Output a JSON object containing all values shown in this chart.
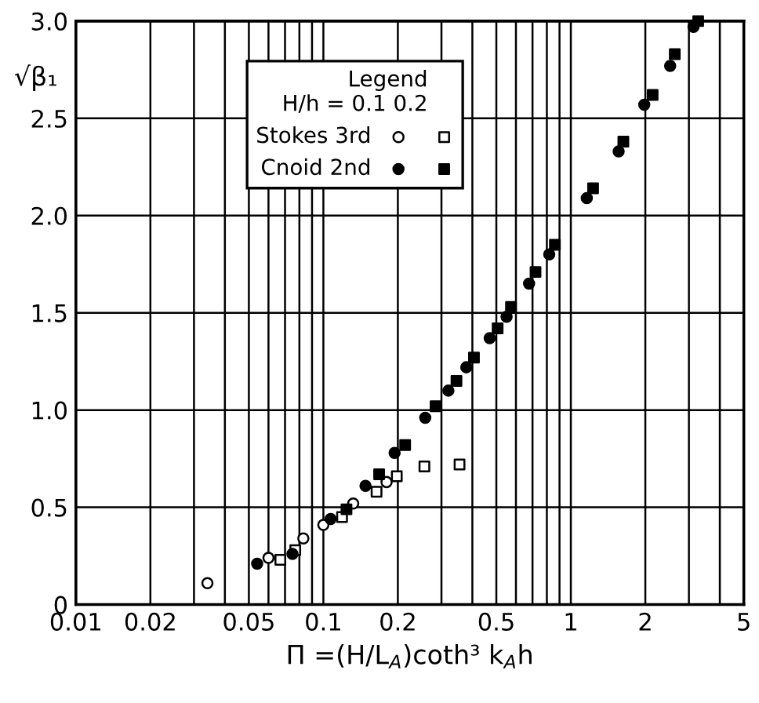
{
  "chart_data": {
    "type": "scatter",
    "xlabel": "Π =(H/L$_{A}$)coth³ k$_{A}$h",
    "ylabel": "√β₁",
    "legend_title": "Legend",
    "annotations": [
      "H/h = 0.1 0.2"
    ],
    "log": "x",
    "grid": true,
    "legend": "top left",
    "xlim": [
      0.01,
      5
    ],
    "ylim": [
      0,
      3.0
    ],
    "xticks": [
      0.01,
      0.02,
      {
        "value": 0.03,
        "label": null
      },
      {
        "value": 0.04,
        "label": null
      },
      0.05,
      {
        "value": 0.06,
        "label": null
      },
      {
        "value": 0.07,
        "label": null
      },
      {
        "value": 0.08,
        "label": null
      },
      {
        "value": 0.09,
        "label": null
      },
      0.1,
      0.2,
      {
        "value": 0.3,
        "label": null
      },
      {
        "value": 0.4,
        "label": null
      },
      0.5,
      {
        "value": 0.6,
        "label": null
      },
      {
        "value": 0.7,
        "label": null
      },
      {
        "value": 0.8,
        "label": null
      },
      {
        "value": 0.9,
        "label": null
      },
      1,
      2,
      {
        "value": 3,
        "label": null
      },
      {
        "value": 4,
        "label": null
      },
      5
    ],
    "yticks": [
      0,
      0.5,
      {
        "value": 1,
        "label": "1.0"
      },
      1.5,
      {
        "value": 2,
        "label": "2.0"
      },
      2.5,
      {
        "value": 3,
        "label": "3.0"
      }
    ],
    "series": [
      {
        "name": "Stokes 3rd",
        "color": "#ffffff",
        "marker": "circle",
        "x": [
          0.034,
          0.06,
          0.083,
          0.1,
          0.132,
          0.18
        ],
        "values": [
          0.11,
          0.24,
          0.34,
          0.41,
          0.52,
          0.63
        ]
      },
      {
        "color": "#ffffff",
        "marker": "square",
        "x": [
          0.067,
          0.077,
          0.119,
          0.164,
          0.198,
          0.256,
          0.355
        ],
        "values": [
          0.23,
          0.28,
          0.45,
          0.58,
          0.66,
          0.71,
          0.72
        ]
      },
      {
        "name": "Cnoid 2nd",
        "color": "#000000",
        "marker": "circle",
        "x": [
          0.054,
          0.075,
          0.107,
          0.148,
          0.194,
          0.258,
          0.32,
          0.378,
          0.47,
          0.55,
          0.678,
          0.818,
          1.16,
          1.56,
          1.98,
          2.52,
          3.13
        ],
        "values": [
          0.21,
          0.26,
          0.44,
          0.61,
          0.78,
          0.96,
          1.1,
          1.22,
          1.37,
          1.48,
          1.65,
          1.8,
          2.09,
          2.33,
          2.57,
          2.77,
          2.97
        ]
      },
      {
        "color": "#000000",
        "marker": "square",
        "x": [
          0.124,
          0.168,
          0.214,
          0.284,
          0.345,
          0.406,
          0.506,
          0.573,
          0.72,
          0.862,
          1.23,
          1.63,
          2.14,
          2.63,
          3.27
        ],
        "values": [
          0.49,
          0.67,
          0.82,
          1.02,
          1.15,
          1.27,
          1.42,
          1.53,
          1.71,
          1.85,
          2.14,
          2.38,
          2.62,
          2.83,
          3.0
        ]
      }
    ]
  }
}
